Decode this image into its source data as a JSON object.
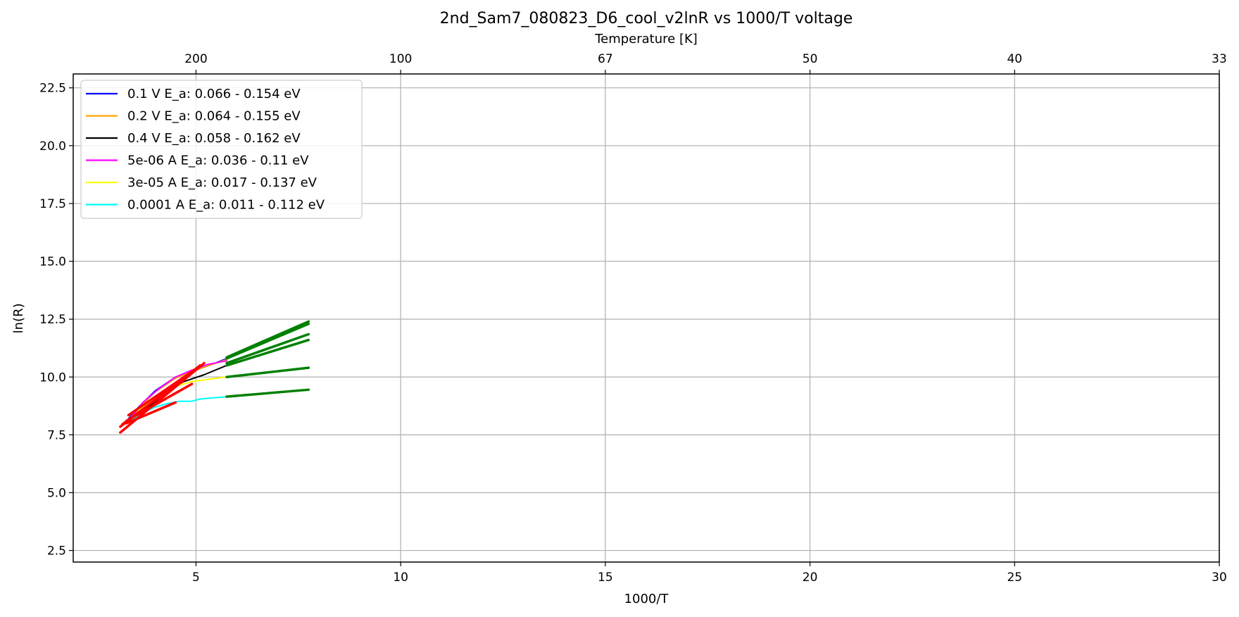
{
  "chart_data": {
    "type": "line",
    "title": "2nd_Sam7_080823_D6_cool_v2lnR vs 1000/T voltage",
    "xlabel": "1000/T",
    "ylabel": "ln(R)",
    "top_xlabel": "Temperature [K]",
    "xlim": [
      2,
      30
    ],
    "ylim": [
      2,
      23.1
    ],
    "x_ticks": [
      "5",
      "10",
      "15",
      "20",
      "25",
      "30"
    ],
    "x_tick_values": [
      5,
      10,
      15,
      20,
      25,
      30
    ],
    "y_ticks": [
      "2.5",
      "5.0",
      "7.5",
      "10.0",
      "12.5",
      "15.0",
      "17.5",
      "20.0",
      "22.5"
    ],
    "y_tick_values": [
      2.5,
      5.0,
      7.5,
      10.0,
      12.5,
      15.0,
      17.5,
      20.0,
      22.5
    ],
    "top_ticks": [
      "200",
      "100",
      "67",
      "50",
      "40",
      "33"
    ],
    "top_tick_values": [
      5,
      10,
      15,
      20,
      25,
      30
    ],
    "grid": true,
    "legend_position": "upper-left",
    "series": [
      {
        "name": "0.1 V  E_a: 0.066 - 0.154 eV",
        "color": "#0000ff",
        "x": [
          3.35,
          3.6,
          4.0,
          4.5,
          5.0,
          5.4,
          5.75
        ],
        "y": [
          8.2,
          8.7,
          9.4,
          10.0,
          10.3,
          10.55,
          10.8
        ]
      },
      {
        "name": "0.2 V  E_a: 0.064 - 0.155 eV",
        "color": "#ffa500",
        "x": [
          3.35,
          3.6,
          4.0,
          4.5,
          5.0,
          5.4,
          5.75
        ],
        "y": [
          8.15,
          8.65,
          9.35,
          9.95,
          10.3,
          10.55,
          10.75
        ]
      },
      {
        "name": "0.4 V  E_a: 0.058 - 0.162 eV",
        "color": "#000000",
        "x": [
          3.2,
          3.5,
          3.9,
          4.3,
          4.7,
          5.2,
          5.75
        ],
        "y": [
          7.65,
          8.1,
          8.8,
          9.4,
          9.8,
          10.1,
          10.5
        ]
      },
      {
        "name": "5e-06 A E_a: 0.036 - 0.11 eV",
        "color": "#ff00ff",
        "x": [
          3.4,
          3.7,
          4.1,
          4.5,
          4.9,
          5.3,
          5.75
        ],
        "y": [
          8.2,
          8.9,
          9.5,
          10.0,
          10.3,
          10.55,
          10.7
        ]
      },
      {
        "name": "3e-05 A E_a: 0.017 - 0.137 eV",
        "color": "#ffff00",
        "x": [
          3.4,
          3.7,
          4.1,
          4.5,
          4.9,
          5.3,
          5.75
        ],
        "y": [
          8.2,
          8.7,
          9.2,
          9.6,
          9.8,
          9.9,
          10.0
        ]
      },
      {
        "name": "0.0001 A E_a: 0.011 - 0.112 eV",
        "color": "#00ffff",
        "x": [
          3.4,
          3.7,
          4.0,
          4.3,
          4.6,
          4.9,
          5.1,
          5.75
        ],
        "y": [
          8.1,
          8.45,
          8.7,
          8.85,
          8.95,
          8.95,
          9.05,
          9.15
        ]
      }
    ],
    "fit_lines": {
      "low_T": {
        "color": "#008000",
        "segments": [
          {
            "x": [
              5.75,
              7.75
            ],
            "y": [
              10.85,
              12.4
            ]
          },
          {
            "x": [
              5.75,
              7.75
            ],
            "y": [
              10.8,
              12.3
            ]
          },
          {
            "x": [
              5.75,
              7.75
            ],
            "y": [
              10.6,
              11.85
            ]
          },
          {
            "x": [
              5.75,
              7.75
            ],
            "y": [
              10.5,
              11.6
            ]
          },
          {
            "x": [
              5.75,
              7.75
            ],
            "y": [
              10.0,
              10.4
            ]
          },
          {
            "x": [
              5.75,
              7.75
            ],
            "y": [
              9.15,
              9.45
            ]
          }
        ]
      },
      "high_T": {
        "color": "#ff0000",
        "segments": [
          {
            "x": [
              3.15,
              5.2
            ],
            "y": [
              7.6,
              10.6
            ]
          },
          {
            "x": [
              3.15,
              5.1
            ],
            "y": [
              7.85,
              10.5
            ]
          },
          {
            "x": [
              3.2,
              5.1
            ],
            "y": [
              7.95,
              10.45
            ]
          },
          {
            "x": [
              3.35,
              5.0
            ],
            "y": [
              8.35,
              10.35
            ]
          },
          {
            "x": [
              3.3,
              4.9
            ],
            "y": [
              8.1,
              9.7
            ]
          },
          {
            "x": [
              3.3,
              4.5
            ],
            "y": [
              8.0,
              8.9
            ]
          }
        ]
      }
    }
  }
}
